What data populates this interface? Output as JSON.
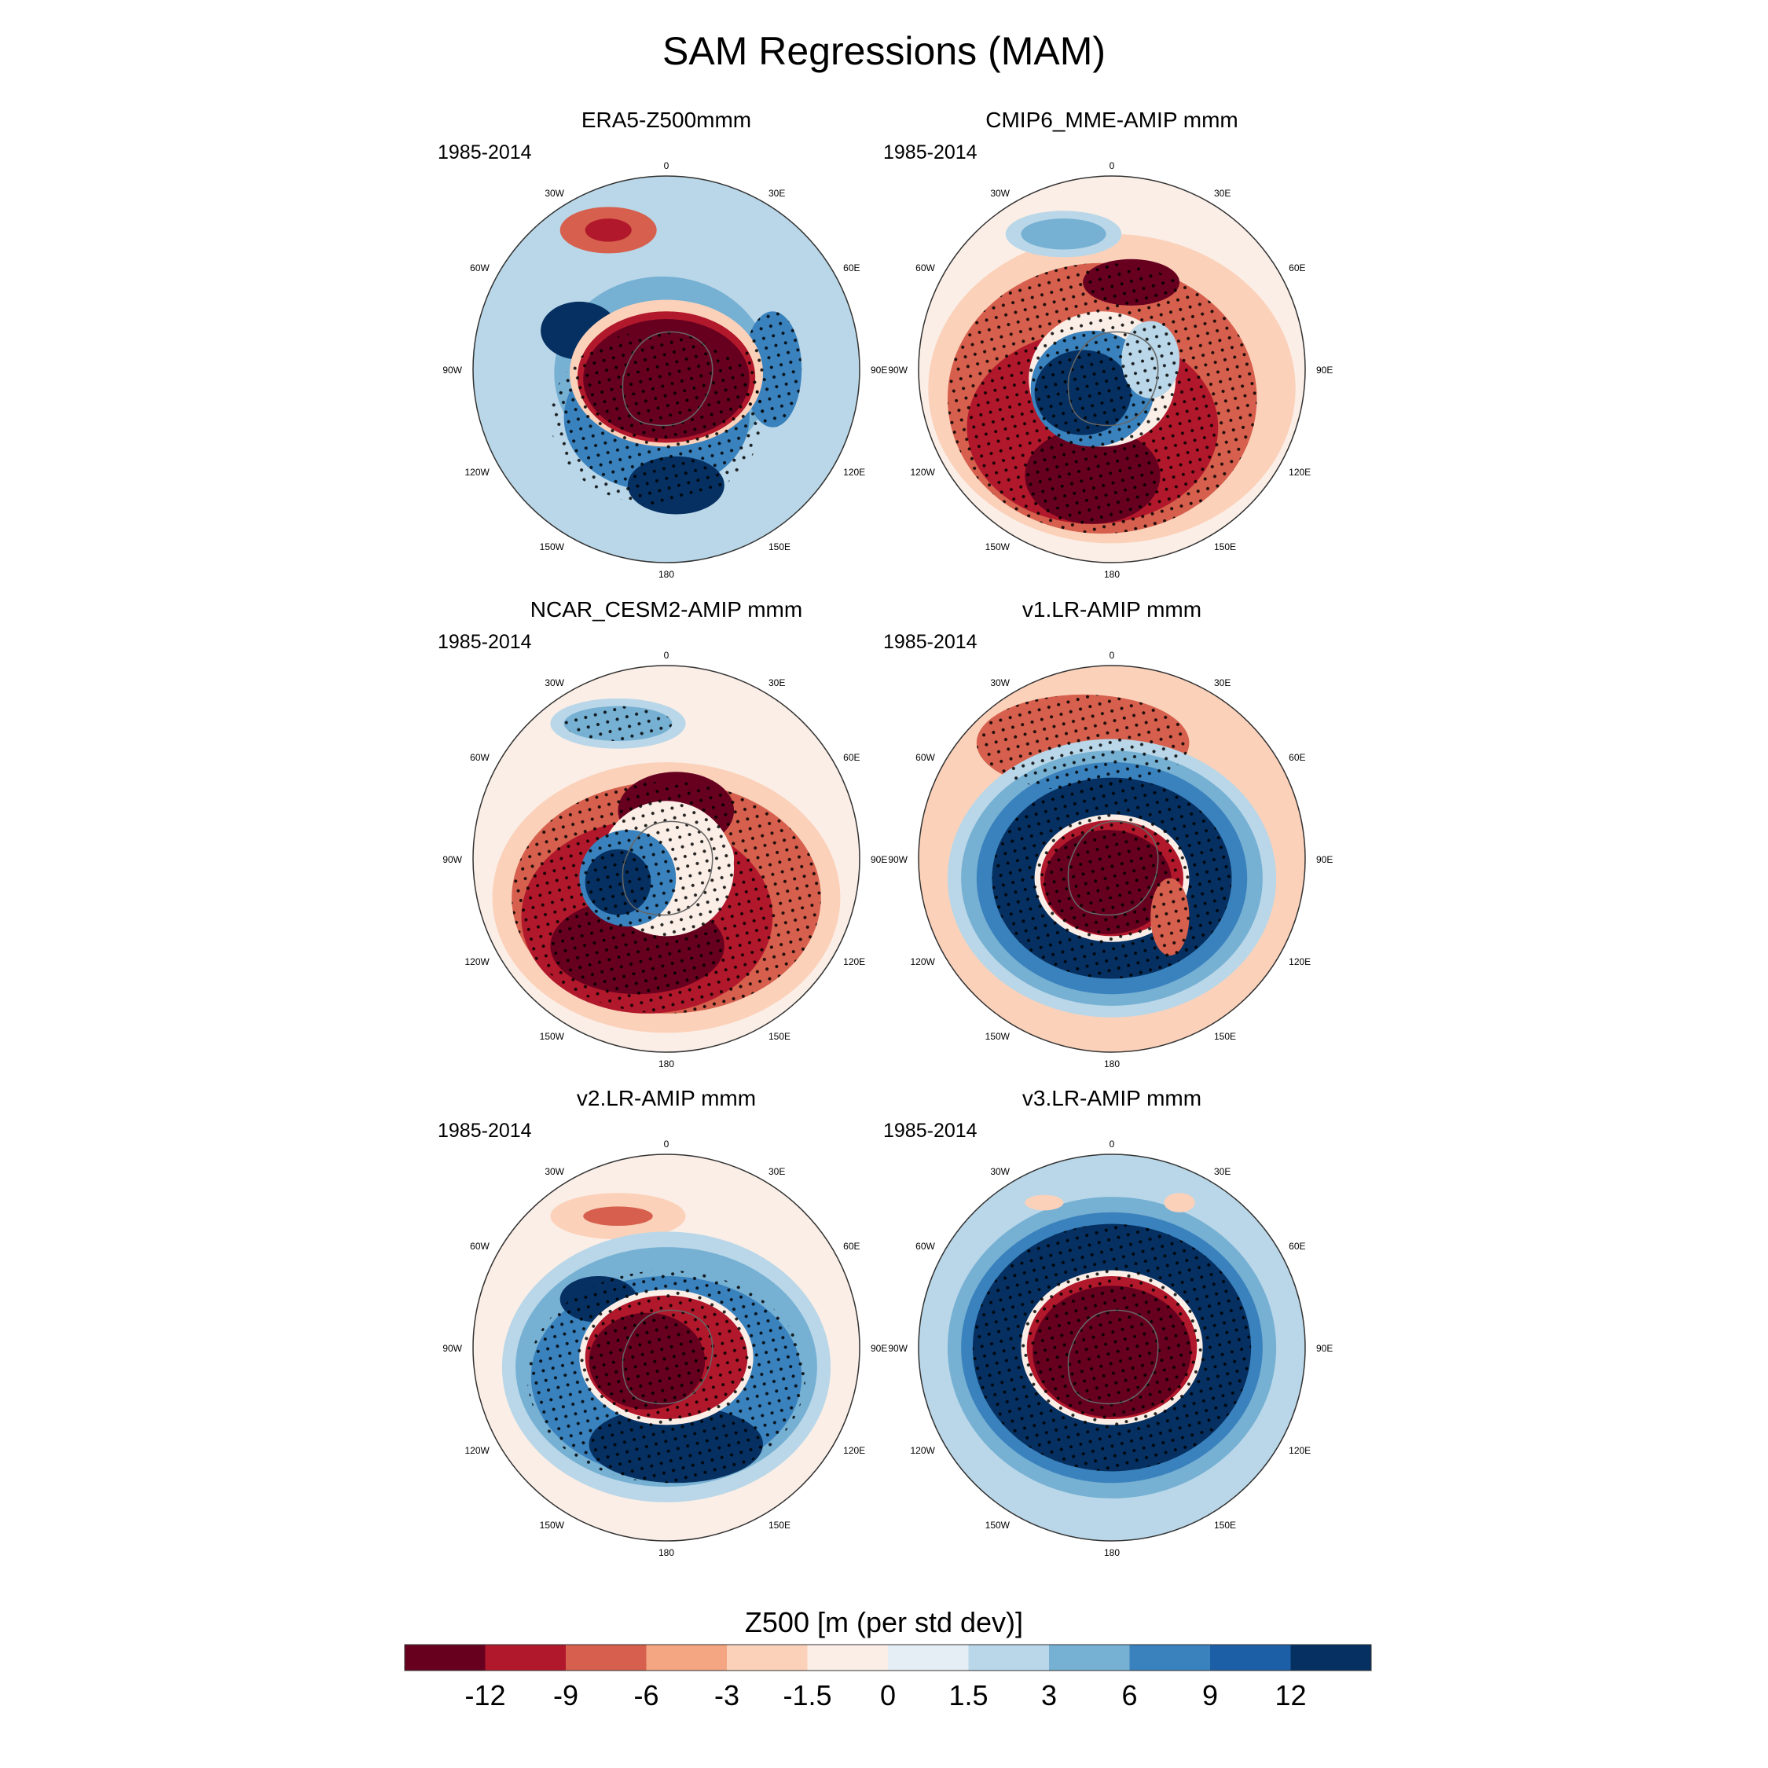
{
  "chart_data": {
    "type": "polar-stereographic contour maps (6 panels)",
    "title": "SAM Regressions (MAM)",
    "panels": [
      {
        "title": "ERA5-Z500mmm",
        "period": "1985-2014"
      },
      {
        "title": "CMIP6_MME-AMIP  mmm",
        "period": "1985-2014"
      },
      {
        "title": "NCAR_CESM2-AMIP  mmm",
        "period": "1985-2014"
      },
      {
        "title": "v1.LR-AMIP  mmm",
        "period": "1985-2014"
      },
      {
        "title": "v2.LR-AMIP  mmm",
        "period": "1985-2014"
      },
      {
        "title": "v3.LR-AMIP  mmm",
        "period": "1985-2014"
      }
    ],
    "lon_labels": [
      "0",
      "30E",
      "60E",
      "90E",
      "120E",
      "150E",
      "180",
      "150W",
      "120W",
      "90W",
      "60W",
      "30W"
    ],
    "colorbar": {
      "label": "Z500 [m (per std dev)]",
      "ticks": [
        "-12",
        "-9",
        "-6",
        "-3",
        "-1.5",
        "0",
        "1.5",
        "3",
        "6",
        "9",
        "12"
      ],
      "colors": [
        "#67001f",
        "#b2182b",
        "#d6604d",
        "#f4a582",
        "#fbd1ba",
        "#fbeee6",
        "#e5eef4",
        "#b9d7e8",
        "#76b0d3",
        "#3a82bd",
        "#1d5fa6",
        "#053061"
      ]
    }
  }
}
